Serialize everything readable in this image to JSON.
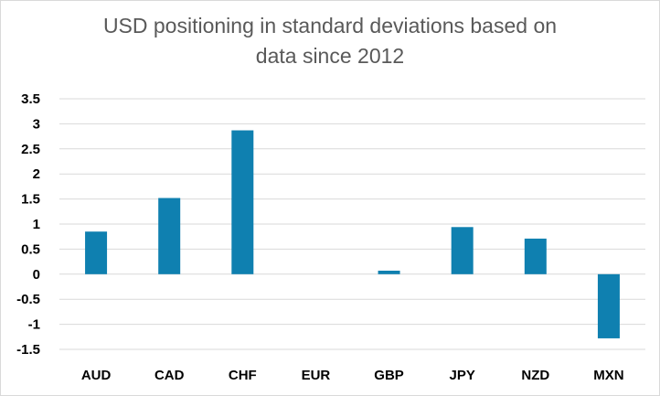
{
  "chart_data": {
    "type": "bar",
    "title_lines": [
      "USD positioning in standard deviations based on",
      "data since 2012"
    ],
    "categories": [
      "AUD",
      "CAD",
      "CHF",
      "EUR",
      "GBP",
      "JPY",
      "NZD",
      "MXN"
    ],
    "values": [
      0.85,
      1.52,
      2.87,
      0.0,
      0.07,
      0.94,
      0.71,
      -1.28
    ],
    "ylim": [
      -1.5,
      3.5
    ],
    "yticks": [
      "3.5",
      "3",
      "2.5",
      "2",
      "1.5",
      "1",
      "0.5",
      "0",
      "-0.5",
      "-1",
      "-1.5"
    ],
    "grid": true,
    "legend": "none",
    "xlabel": "",
    "ylabel": ""
  },
  "colors": {
    "bar": "#0f80b0",
    "grid": "#d9d9d9"
  }
}
